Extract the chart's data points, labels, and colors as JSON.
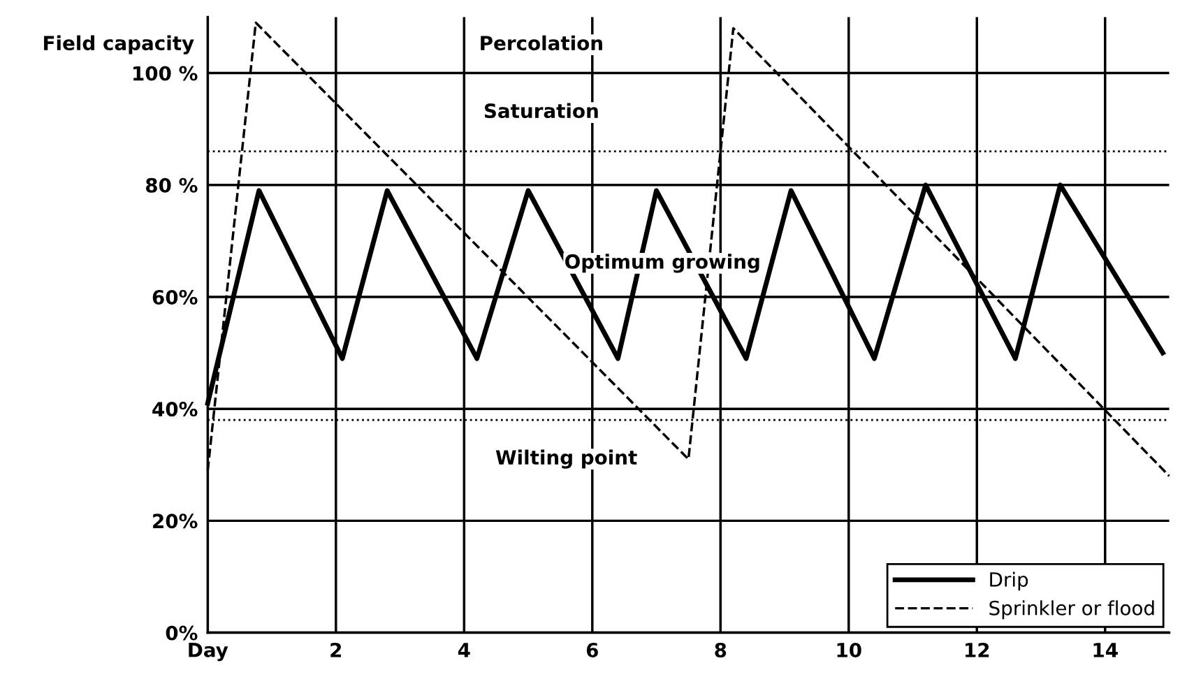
{
  "chart_data": {
    "type": "line",
    "xlim": [
      0,
      15
    ],
    "ylim": [
      0,
      110
    ],
    "xticks": [
      {
        "value": 0,
        "label": "Day"
      },
      2,
      4,
      6,
      8,
      10,
      12,
      14
    ],
    "yticks": [
      {
        "value": 0,
        "label": "0%"
      },
      {
        "value": 20,
        "label": "20%"
      },
      {
        "value": 40,
        "label": "40%"
      },
      {
        "value": 60,
        "label": "60%"
      },
      {
        "value": 80,
        "label": "80 %"
      },
      {
        "value": 100,
        "label": "100 %"
      }
    ],
    "grid": true,
    "legend": "bottom right",
    "series": [
      {
        "name": "Drip",
        "color": "#000000",
        "line_style": "solid",
        "x": [
          0,
          0.8,
          2.1,
          2.8,
          4.2,
          5.0,
          6.4,
          7.0,
          8.4,
          9.1,
          10.4,
          11.2,
          12.6,
          13.3,
          14.9
        ],
        "values": [
          41,
          79,
          49,
          79,
          49,
          79,
          49,
          79,
          49,
          79,
          49,
          80,
          49,
          80,
          50
        ]
      },
      {
        "name": "Sprinkler or flood",
        "color": "#000000",
        "line_style": "dashed",
        "x": [
          0,
          0.75,
          7.5,
          8.2,
          15
        ],
        "values": [
          29,
          109,
          31,
          108,
          28
        ]
      }
    ],
    "ref_lines": [
      {
        "axis": "y",
        "value": 86,
        "color": "#000000",
        "line_style": "dotted"
      },
      {
        "axis": "y",
        "value": 38,
        "color": "#000000",
        "line_style": "dotted"
      }
    ],
    "annotations": [
      "Field capacity",
      "Percolation",
      "Saturation",
      "Optimum growing",
      "Wilting point"
    ]
  }
}
